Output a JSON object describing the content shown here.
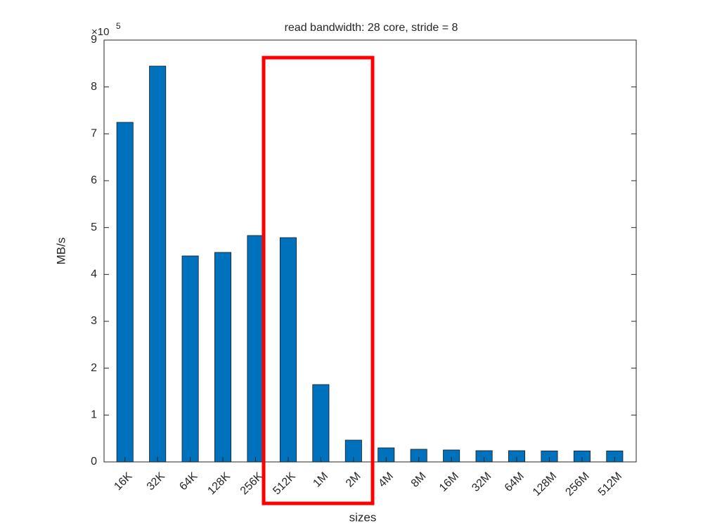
{
  "chart_data": {
    "type": "bar",
    "title": "read bandwidth: 28 core, stride = 8",
    "x_label": "sizes",
    "y_label": "MB/s",
    "y_multiplier": "×10",
    "y_multiplier_exponent": "5",
    "categories": [
      "16K",
      "32K",
      "64K",
      "128K",
      "256K",
      "512K",
      "1M",
      "2M",
      "4M",
      "8M",
      "16M",
      "32M",
      "64M",
      "128M",
      "256M",
      "512M"
    ],
    "values": [
      7.245,
      8.445,
      4.395,
      4.47,
      4.83,
      4.785,
      1.65,
      0.465,
      0.3,
      0.27,
      0.255,
      0.24,
      0.24,
      0.235,
      0.235,
      0.235
    ],
    "color": "#0072bd",
    "ylim": [
      0,
      9
    ],
    "yticks": [
      0,
      1,
      2,
      3,
      4,
      5,
      6,
      7,
      8,
      9
    ],
    "grid": false
  }
}
